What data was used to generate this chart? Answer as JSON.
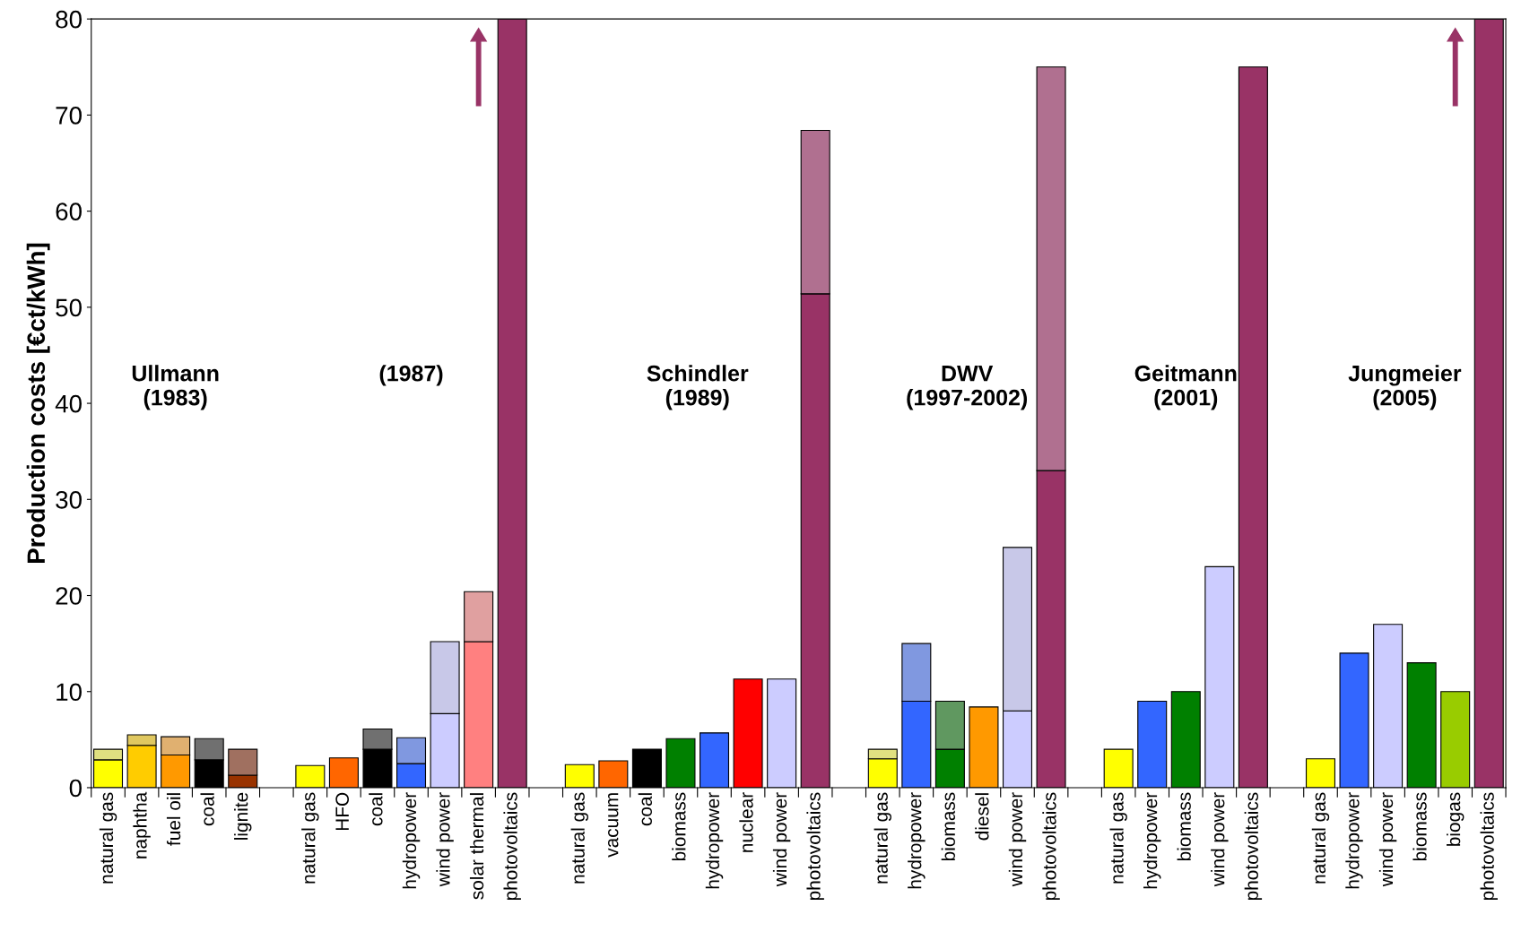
{
  "chart_data": {
    "type": "bar",
    "stacked": true,
    "ylabel": "Production costs [€ct/kWh]",
    "categories": [
      "natural gas",
      "naphtha",
      "fuel oil",
      "coal",
      "lignite",
      null,
      "natural gas",
      "HFO",
      "coal",
      "hydropower",
      "wind power",
      "solar thermal",
      "photovoltaics",
      null,
      "natural gas",
      "vacuum",
      "coal",
      "biomass",
      "hydropower",
      "nuclear",
      "wind power",
      "photovoltaics",
      null,
      "natural gas",
      "hydropower",
      "biomass",
      "diesel",
      "wind power",
      "photovoltaics",
      null,
      "natural gas",
      "hydropower",
      "biomass",
      "wind power",
      "photovoltaics",
      null,
      "natural gas",
      "hydropower",
      "wind power",
      "biomass",
      "biogas",
      "photovoltaics"
    ],
    "series": [
      {
        "colors": [
          "#ffff00",
          "#ffcc00",
          "#ff9900",
          "#000000",
          "#993300",
          null,
          "#ffff00",
          "#ff6600",
          "#000000",
          "#3366ff",
          "#ccccff",
          "#ff8080",
          "#993366",
          null,
          "#ffff00",
          "#ff6600",
          "#000000",
          "#008000",
          "#3366ff",
          "#ff0000",
          "#ccccff",
          "#993366",
          null,
          "#ffff00",
          "#3366ff",
          "#008000",
          "#ff9900",
          "#ccccff",
          "#993366",
          null,
          "#ffff00",
          "#3366ff",
          "#008000",
          "#ccccff",
          "#993366",
          null,
          "#ffff00",
          "#3366ff",
          "#ccccff",
          "#008000",
          "#99cc00",
          "#993366"
        ],
        "values": [
          2.9,
          4.4,
          3.4,
          2.9,
          1.3,
          null,
          2.3,
          3.1,
          4.0,
          2.5,
          7.7,
          15.2,
          80,
          null,
          2.4,
          2.8,
          4.0,
          5.1,
          5.7,
          11.3,
          11.3,
          51.4,
          null,
          3.0,
          9.0,
          4.0,
          8.4,
          8.0,
          33,
          null,
          4.0,
          9.0,
          10.0,
          23.0,
          75,
          null,
          3.0,
          14.0,
          17.0,
          13.0,
          10.0,
          80
        ]
      },
      {
        "colors": [
          "#e0e080",
          "#e0c860",
          "#e0b070",
          "#707070",
          "#a07060",
          null,
          null,
          null,
          "#707070",
          "#8098e0",
          "#c8c8e8",
          "#e0a0a0",
          null,
          null,
          null,
          null,
          null,
          null,
          null,
          null,
          null,
          "#b07090",
          null,
          "#e0e080",
          "#8098e0",
          "#609860",
          null,
          "#c8c8e8",
          "#b07090",
          null,
          null,
          null,
          null,
          null,
          null,
          null,
          null,
          null,
          null,
          null,
          null,
          null
        ],
        "values": [
          1.1,
          1.1,
          1.9,
          2.2,
          2.7,
          null,
          null,
          null,
          2.1,
          2.7,
          7.5,
          5.2,
          null,
          null,
          null,
          null,
          null,
          null,
          null,
          null,
          null,
          17.0,
          null,
          1.0,
          6.0,
          5.0,
          null,
          17.0,
          42,
          null,
          null,
          null,
          null,
          null,
          null,
          null,
          null,
          null,
          null,
          null,
          null,
          null
        ]
      }
    ],
    "ylim": [
      0,
      80
    ],
    "yticks": [
      0,
      10,
      20,
      30,
      40,
      50,
      60,
      70,
      80
    ],
    "grid": false,
    "legend": false,
    "annotations": [
      "Ullmann\n(1983)",
      "(1987)",
      "Schindler\n(1989)",
      "DWV\n(1997-2002)",
      "Geitmann\n(2001)",
      "Jungmeier\n(2005)"
    ]
  }
}
